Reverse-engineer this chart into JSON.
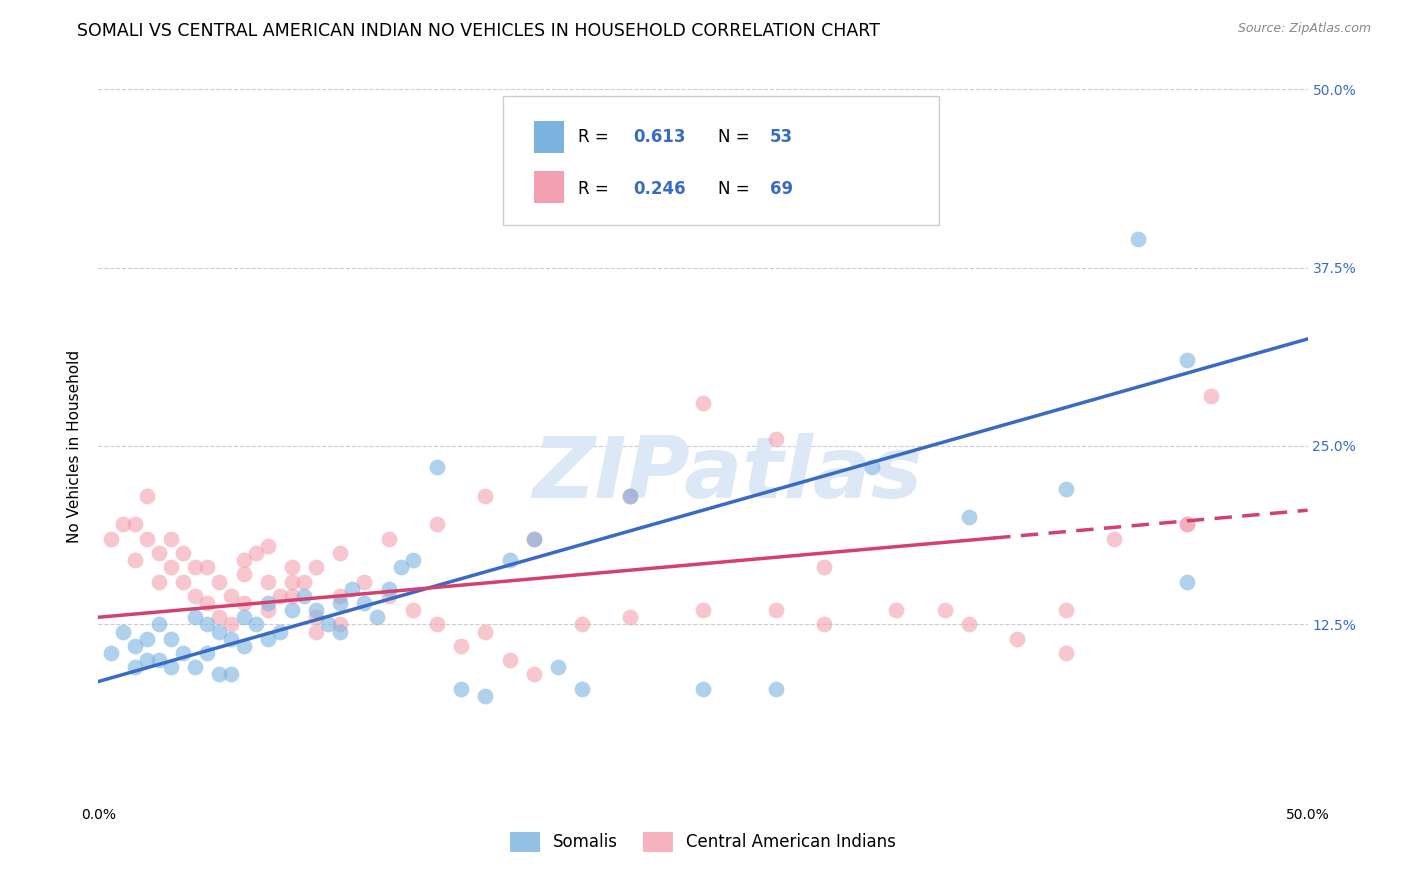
{
  "title": "SOMALI VS CENTRAL AMERICAN INDIAN NO VEHICLES IN HOUSEHOLD CORRELATION CHART",
  "source": "Source: ZipAtlas.com",
  "ylabel": "No Vehicles in Household",
  "xlabel": "",
  "xlim": [
    0.0,
    0.5
  ],
  "ylim": [
    0.0,
    0.5
  ],
  "somali_color": "#7ab3e0",
  "central_american_color": "#f4a0b0",
  "somali_line_color": "#3a6bc4",
  "central_line_color": "#d44070",
  "somali_R": "0.613",
  "somali_N": "53",
  "central_american_R": "0.246",
  "central_american_N": "69",
  "somali_scatter_x": [
    0.005,
    0.01,
    0.015,
    0.015,
    0.02,
    0.02,
    0.025,
    0.025,
    0.03,
    0.03,
    0.035,
    0.04,
    0.04,
    0.045,
    0.045,
    0.05,
    0.05,
    0.055,
    0.055,
    0.06,
    0.06,
    0.065,
    0.07,
    0.07,
    0.075,
    0.08,
    0.085,
    0.09,
    0.095,
    0.1,
    0.1,
    0.105,
    0.11,
    0.115,
    0.12,
    0.125,
    0.13,
    0.14,
    0.15,
    0.16,
    0.17,
    0.18,
    0.19,
    0.2,
    0.22,
    0.25,
    0.28,
    0.32,
    0.36,
    0.4,
    0.43,
    0.45,
    0.45
  ],
  "somali_scatter_y": [
    0.105,
    0.12,
    0.11,
    0.095,
    0.115,
    0.1,
    0.125,
    0.1,
    0.115,
    0.095,
    0.105,
    0.13,
    0.095,
    0.125,
    0.105,
    0.12,
    0.09,
    0.115,
    0.09,
    0.13,
    0.11,
    0.125,
    0.14,
    0.115,
    0.12,
    0.135,
    0.145,
    0.135,
    0.125,
    0.14,
    0.12,
    0.15,
    0.14,
    0.13,
    0.15,
    0.165,
    0.17,
    0.235,
    0.08,
    0.075,
    0.17,
    0.185,
    0.095,
    0.08,
    0.215,
    0.08,
    0.08,
    0.235,
    0.2,
    0.22,
    0.395,
    0.31,
    0.155
  ],
  "central_scatter_x": [
    0.005,
    0.01,
    0.015,
    0.015,
    0.02,
    0.02,
    0.025,
    0.025,
    0.03,
    0.03,
    0.035,
    0.035,
    0.04,
    0.04,
    0.045,
    0.045,
    0.05,
    0.05,
    0.055,
    0.055,
    0.06,
    0.06,
    0.065,
    0.07,
    0.07,
    0.075,
    0.08,
    0.08,
    0.085,
    0.09,
    0.09,
    0.1,
    0.1,
    0.11,
    0.12,
    0.13,
    0.14,
    0.15,
    0.16,
    0.17,
    0.18,
    0.2,
    0.22,
    0.25,
    0.28,
    0.3,
    0.33,
    0.36,
    0.38,
    0.4,
    0.42,
    0.45,
    0.46,
    0.06,
    0.07,
    0.08,
    0.09,
    0.1,
    0.12,
    0.14,
    0.16,
    0.18,
    0.22,
    0.25,
    0.28,
    0.3,
    0.35,
    0.4,
    0.45
  ],
  "central_scatter_y": [
    0.185,
    0.195,
    0.195,
    0.17,
    0.215,
    0.185,
    0.175,
    0.155,
    0.185,
    0.165,
    0.175,
    0.155,
    0.165,
    0.145,
    0.165,
    0.14,
    0.155,
    0.13,
    0.145,
    0.125,
    0.16,
    0.14,
    0.175,
    0.155,
    0.135,
    0.145,
    0.165,
    0.145,
    0.155,
    0.13,
    0.12,
    0.145,
    0.125,
    0.155,
    0.145,
    0.135,
    0.125,
    0.11,
    0.12,
    0.1,
    0.09,
    0.125,
    0.13,
    0.135,
    0.135,
    0.125,
    0.135,
    0.125,
    0.115,
    0.105,
    0.185,
    0.195,
    0.285,
    0.17,
    0.18,
    0.155,
    0.165,
    0.175,
    0.185,
    0.195,
    0.215,
    0.185,
    0.215,
    0.28,
    0.255,
    0.165,
    0.135,
    0.135,
    0.195
  ],
  "somali_line_x": [
    0.0,
    0.5
  ],
  "somali_line_y": [
    0.085,
    0.325
  ],
  "central_line_x": [
    0.0,
    0.5
  ],
  "central_line_y": [
    0.13,
    0.205
  ],
  "central_line_dashed_start": 0.37,
  "background_color": "#ffffff",
  "grid_color": "#cccccc",
  "title_fontsize": 12.5,
  "source_fontsize": 9,
  "axis_label_fontsize": 11,
  "tick_fontsize": 10,
  "legend_fontsize": 12,
  "watermark_text": "ZIPatlas",
  "watermark_color": "#dce8f5",
  "watermark_fontsize": 62
}
